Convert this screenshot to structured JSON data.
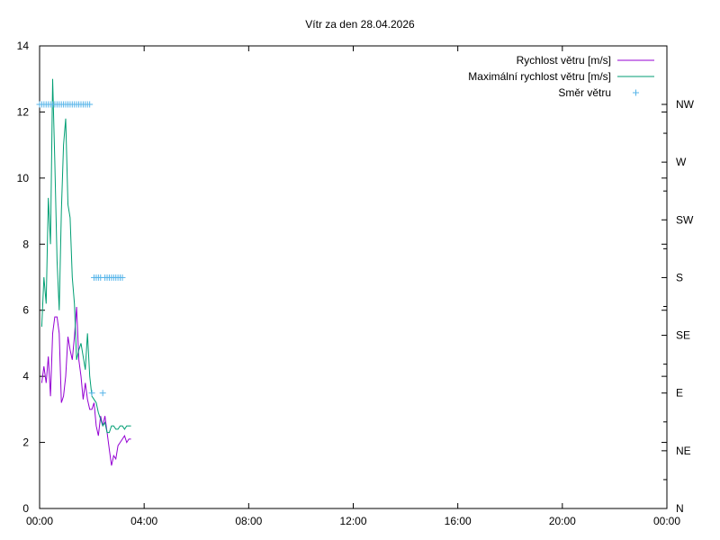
{
  "chart_data": {
    "type": "line",
    "title": "Vítr za den 28.04.2026",
    "xlabel": "",
    "ylabel": "",
    "xlim": [
      "00:00",
      "24:00"
    ],
    "ylim": [
      0,
      14
    ],
    "x_ticks": [
      "00:00",
      "04:00",
      "08:00",
      "12:00",
      "16:00",
      "20:00",
      "00:00"
    ],
    "y_ticks": [
      "0",
      "2",
      "4",
      "6",
      "8",
      "10",
      "12",
      "14"
    ],
    "y2_ticks": [
      "N",
      "NE",
      "E",
      "SE",
      "S",
      "SW",
      "W",
      "NW"
    ],
    "legend_position": "top-right",
    "grid": false,
    "series": [
      {
        "name": "Rychlost větru [m/s]",
        "color": "#9400d3",
        "style": "line",
        "x": [
          "00:05",
          "00:10",
          "00:15",
          "00:20",
          "00:25",
          "00:30",
          "00:35",
          "00:40",
          "00:45",
          "00:50",
          "00:55",
          "01:00",
          "01:05",
          "01:10",
          "01:15",
          "01:20",
          "01:25",
          "01:30",
          "01:35",
          "01:40",
          "01:45",
          "01:50",
          "01:55",
          "02:00",
          "02:05",
          "02:10",
          "02:15",
          "02:20",
          "02:25",
          "02:30",
          "02:35",
          "02:40",
          "02:45",
          "02:50",
          "02:55",
          "03:00",
          "03:05",
          "03:10",
          "03:15",
          "03:20",
          "03:25",
          "03:30"
        ],
        "values": [
          3.8,
          4.3,
          3.8,
          4.6,
          3.4,
          5.3,
          5.8,
          5.8,
          5.3,
          3.2,
          3.4,
          4.0,
          5.2,
          4.8,
          4.5,
          5.2,
          6.1,
          4.5,
          4.0,
          3.3,
          3.8,
          3.3,
          3.0,
          3.0,
          3.2,
          2.5,
          2.2,
          2.8,
          2.5,
          2.8,
          2.3,
          1.8,
          1.3,
          1.6,
          1.5,
          1.9,
          2.0,
          2.1,
          2.2,
          2.0,
          2.1,
          2.1
        ]
      },
      {
        "name": "Maximální rychlost větru [m/s]",
        "color": "#009e73",
        "style": "line",
        "x": [
          "00:05",
          "00:10",
          "00:15",
          "00:20",
          "00:25",
          "00:30",
          "00:35",
          "00:40",
          "00:45",
          "00:50",
          "00:55",
          "01:00",
          "01:05",
          "01:10",
          "01:15",
          "01:20",
          "01:25",
          "01:30",
          "01:35",
          "01:40",
          "01:45",
          "01:50",
          "01:55",
          "02:00",
          "02:05",
          "02:10",
          "02:15",
          "02:20",
          "02:25",
          "02:30",
          "02:35",
          "02:40",
          "02:45",
          "02:50",
          "02:55",
          "03:00",
          "03:05",
          "03:10",
          "03:15",
          "03:20",
          "03:25",
          "03:30"
        ],
        "values": [
          5.5,
          7.0,
          6.2,
          9.4,
          8.0,
          13.0,
          10.5,
          7.5,
          6.0,
          9.0,
          11.0,
          11.8,
          9.2,
          8.8,
          7.0,
          6.2,
          4.5,
          4.8,
          5.0,
          4.6,
          4.2,
          5.3,
          4.0,
          3.4,
          3.3,
          3.2,
          2.9,
          2.7,
          2.5,
          2.6,
          2.3,
          2.3,
          2.5,
          2.5,
          2.4,
          2.4,
          2.5,
          2.5,
          2.4,
          2.5,
          2.5,
          2.5
        ]
      },
      {
        "name": "Směr větru",
        "color": "#56b4e9",
        "style": "points",
        "axis": "y2",
        "x": [
          "00:00",
          "00:05",
          "00:10",
          "00:15",
          "00:20",
          "00:25",
          "00:30",
          "00:35",
          "00:40",
          "00:45",
          "00:50",
          "00:55",
          "01:00",
          "01:05",
          "01:10",
          "01:15",
          "01:20",
          "01:25",
          "01:30",
          "01:35",
          "01:40",
          "01:45",
          "01:50",
          "01:55",
          "02:00",
          "02:05",
          "02:10",
          "02:15",
          "02:20",
          "02:25",
          "02:30",
          "02:35",
          "02:40",
          "02:45",
          "02:50",
          "02:55",
          "03:00",
          "03:05",
          "03:10"
        ],
        "values": [
          "NW",
          "NW",
          "NW",
          "NW",
          "NW",
          "NW",
          "NW",
          "NW",
          "NW",
          "NW",
          "NW",
          "NW",
          "NW",
          "NW",
          "NW",
          "NW",
          "NW",
          "NW",
          "NW",
          "NW",
          "NW",
          "NW",
          "NW",
          "NW",
          "E",
          "S",
          "S",
          "S",
          "S",
          "E",
          "S",
          "S",
          "S",
          "S",
          "S",
          "S",
          "S",
          "S",
          "S"
        ]
      }
    ]
  }
}
